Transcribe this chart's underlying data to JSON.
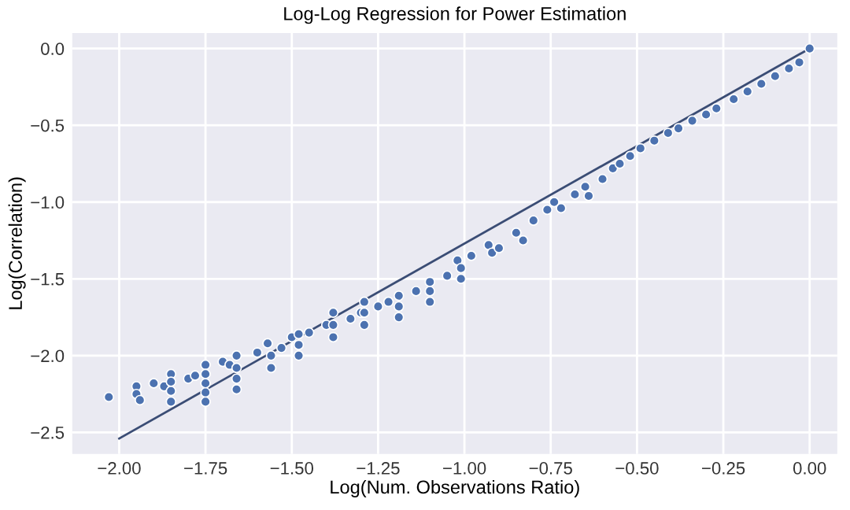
{
  "chart_data": {
    "type": "scatter",
    "title": "Log-Log Regression for Power Estimation",
    "xlabel": "Log(Num. Observations Ratio)",
    "ylabel": "Log(Correlation)",
    "xlim": [
      -2.136,
      0.08
    ],
    "ylim": [
      -2.64,
      0.1
    ],
    "xticks": [
      {
        "value": -2.0,
        "label": "−2.00"
      },
      {
        "value": -1.75,
        "label": "−1.75"
      },
      {
        "value": -1.5,
        "label": "−1.50"
      },
      {
        "value": -1.25,
        "label": "−1.25"
      },
      {
        "value": -1.0,
        "label": "−1.00"
      },
      {
        "value": -0.75,
        "label": "−0.75"
      },
      {
        "value": -0.5,
        "label": "−0.50"
      },
      {
        "value": -0.25,
        "label": "−0.25"
      },
      {
        "value": 0.0,
        "label": "0.00"
      }
    ],
    "yticks": [
      {
        "value": -2.5,
        "label": "−2.5"
      },
      {
        "value": -2.0,
        "label": "−2.0"
      },
      {
        "value": -1.5,
        "label": "−1.5"
      },
      {
        "value": -1.0,
        "label": "−1.0"
      },
      {
        "value": -0.5,
        "label": "−0.5"
      },
      {
        "value": 0.0,
        "label": "0.0"
      }
    ],
    "grid": true,
    "series": [
      {
        "marker": "circle",
        "color": "#4c72b0",
        "x": [
          -2.03,
          -1.95,
          -1.95,
          -1.94,
          -1.9,
          -1.87,
          -1.85,
          -1.85,
          -1.85,
          -1.85,
          -1.8,
          -1.78,
          -1.75,
          -1.75,
          -1.75,
          -1.75,
          -1.75,
          -1.7,
          -1.68,
          -1.66,
          -1.66,
          -1.66,
          -1.66,
          -1.6,
          -1.57,
          -1.56,
          -1.56,
          -1.53,
          -1.5,
          -1.48,
          -1.48,
          -1.48,
          -1.45,
          -1.4,
          -1.38,
          -1.38,
          -1.38,
          -1.33,
          -1.3,
          -1.29,
          -1.29,
          -1.29,
          -1.25,
          -1.22,
          -1.19,
          -1.19,
          -1.19,
          -1.14,
          -1.1,
          -1.1,
          -1.1,
          -1.05,
          -1.02,
          -1.01,
          -1.01,
          -0.98,
          -0.93,
          -0.92,
          -0.9,
          -0.85,
          -0.83,
          -0.8,
          -0.76,
          -0.74,
          -0.72,
          -0.68,
          -0.65,
          -0.64,
          -0.6,
          -0.57,
          -0.55,
          -0.52,
          -0.49,
          -0.45,
          -0.41,
          -0.38,
          -0.34,
          -0.3,
          -0.27,
          -0.22,
          -0.18,
          -0.14,
          -0.1,
          -0.06,
          -0.03,
          0.0
        ],
        "values": [
          -2.27,
          -2.2,
          -2.25,
          -2.29,
          -2.18,
          -2.2,
          -2.12,
          -2.17,
          -2.23,
          -2.3,
          -2.15,
          -2.13,
          -2.06,
          -2.12,
          -2.18,
          -2.24,
          -2.3,
          -2.04,
          -2.06,
          -2.0,
          -2.08,
          -2.15,
          -2.22,
          -1.98,
          -1.92,
          -2.0,
          -2.08,
          -1.95,
          -1.88,
          -1.86,
          -1.93,
          -2.0,
          -1.85,
          -1.8,
          -1.72,
          -1.8,
          -1.88,
          -1.76,
          -1.72,
          -1.65,
          -1.72,
          -1.8,
          -1.68,
          -1.65,
          -1.61,
          -1.68,
          -1.75,
          -1.58,
          -1.52,
          -1.58,
          -1.65,
          -1.48,
          -1.38,
          -1.43,
          -1.5,
          -1.35,
          -1.28,
          -1.33,
          -1.3,
          -1.2,
          -1.25,
          -1.12,
          -1.05,
          -1.0,
          -1.04,
          -0.95,
          -0.9,
          -0.96,
          -0.85,
          -0.78,
          -0.75,
          -0.7,
          -0.65,
          -0.6,
          -0.55,
          -0.52,
          -0.47,
          -0.43,
          -0.39,
          -0.33,
          -0.28,
          -0.23,
          -0.18,
          -0.13,
          -0.09,
          0.0
        ]
      },
      {
        "type": "line",
        "color": "#3b4d75",
        "x": [
          -2.0,
          0.0
        ],
        "values": [
          -2.54,
          0.0
        ]
      }
    ]
  }
}
